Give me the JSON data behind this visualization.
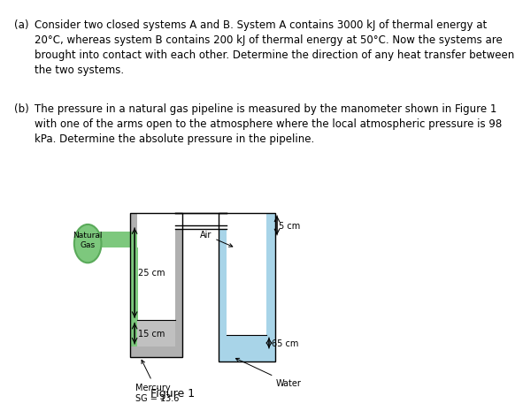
{
  "text_a_label": "(a)",
  "text_a_content": "Consider two closed systems A and B. System A contains 3000 kJ of thermal energy at\n20°C, whereas system B contains 200 kJ of thermal energy at 50°C. Now the systems are\nbrought into contact with each other. Determine the direction of any heat transfer between\nthe two systems.",
  "text_b_label": "(b)",
  "text_b_content": "The pressure in a natural gas pipeline is measured by the manometer shown in Figure 1\nwith one of the arms open to the atmosphere where the local atmospheric pressure is 98\nkPa. Determine the absolute pressure in the pipeline.",
  "figure_label": "Figure 1",
  "natural_gas_label": "Natural\nGas",
  "mercury_label": "Mercury\nSG = 13.6",
  "water_label": "Water",
  "air_label": "Air",
  "dim_25cm": "25 cm",
  "dim_15cm": "15 cm",
  "dim_5cm": "5 cm",
  "dim_65cm": "65 cm",
  "bg_color": "#ffffff",
  "text_color": "#000000",
  "green_fill": "#7dc87d",
  "green_dark": "#5aaa5a",
  "gray_fill": "#b0b0b0",
  "gray_dark": "#888888",
  "blue_fill": "#a8d4e8",
  "blue_dark": "#7ab8d4",
  "mercury_fill": "#c0c0c0",
  "water_fill": "#a8d4e8",
  "wall_color": "#999999",
  "font_size_text": 8.5,
  "font_size_label": 8.5,
  "font_size_fig": 9
}
